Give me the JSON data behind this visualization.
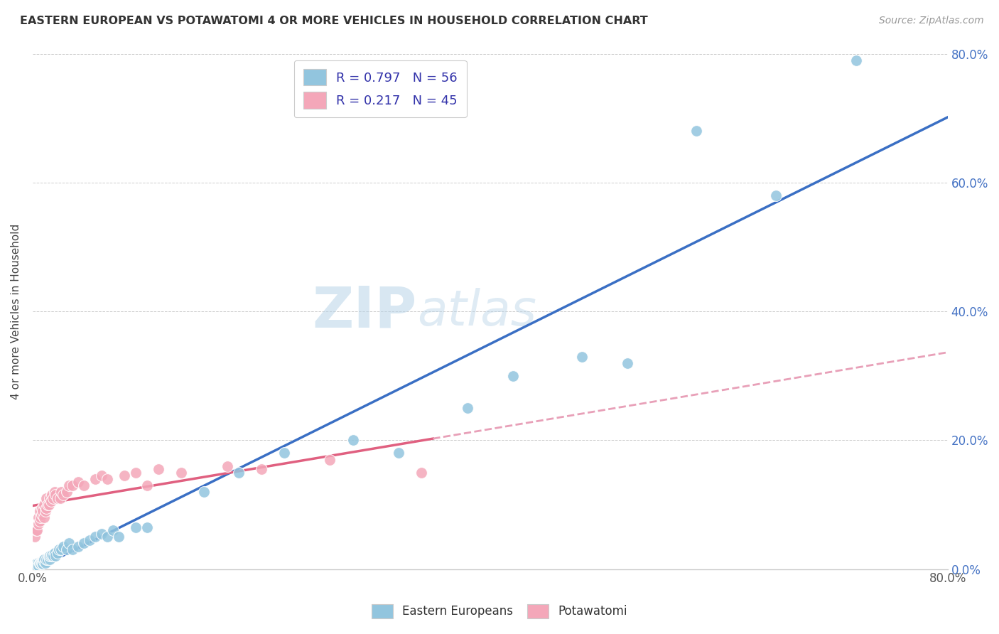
{
  "title": "EASTERN EUROPEAN VS POTAWATOMI 4 OR MORE VEHICLES IN HOUSEHOLD CORRELATION CHART",
  "source": "Source: ZipAtlas.com",
  "ylabel": "4 or more Vehicles in Household",
  "xlim": [
    0.0,
    0.8
  ],
  "ylim": [
    0.0,
    0.8
  ],
  "legend_r1": "R = 0.797   N = 56",
  "legend_r2": "R = 0.217   N = 45",
  "color_eastern": "#92c5de",
  "color_potawatomi": "#f4a7b9",
  "trendline_eastern": "#3a6fc4",
  "trendline_potawatomi": "#e06080",
  "trendline_potawatomi_dashed": "#e8a0b8",
  "watermark_zip": "ZIP",
  "watermark_atlas": "atlas",
  "eastern_x": [
    0.002,
    0.003,
    0.004,
    0.005,
    0.005,
    0.006,
    0.006,
    0.007,
    0.007,
    0.008,
    0.008,
    0.009,
    0.009,
    0.01,
    0.01,
    0.011,
    0.011,
    0.012,
    0.013,
    0.014,
    0.015,
    0.015,
    0.016,
    0.017,
    0.018,
    0.019,
    0.02,
    0.022,
    0.023,
    0.025,
    0.027,
    0.03,
    0.032,
    0.035,
    0.04,
    0.045,
    0.05,
    0.055,
    0.06,
    0.065,
    0.07,
    0.075,
    0.09,
    0.1,
    0.15,
    0.18,
    0.22,
    0.28,
    0.32,
    0.38,
    0.42,
    0.48,
    0.52,
    0.58,
    0.65,
    0.72
  ],
  "eastern_y": [
    0.005,
    0.008,
    0.005,
    0.01,
    0.005,
    0.01,
    0.008,
    0.01,
    0.008,
    0.01,
    0.01,
    0.012,
    0.008,
    0.012,
    0.015,
    0.012,
    0.01,
    0.015,
    0.015,
    0.018,
    0.015,
    0.02,
    0.02,
    0.022,
    0.02,
    0.025,
    0.02,
    0.025,
    0.03,
    0.03,
    0.035,
    0.03,
    0.04,
    0.03,
    0.035,
    0.04,
    0.045,
    0.05,
    0.055,
    0.05,
    0.06,
    0.05,
    0.065,
    0.065,
    0.12,
    0.15,
    0.18,
    0.2,
    0.18,
    0.25,
    0.3,
    0.33,
    0.32,
    0.68,
    0.58,
    0.79
  ],
  "potawatomi_x": [
    0.002,
    0.003,
    0.004,
    0.005,
    0.005,
    0.006,
    0.006,
    0.007,
    0.008,
    0.008,
    0.009,
    0.01,
    0.01,
    0.011,
    0.012,
    0.012,
    0.013,
    0.014,
    0.015,
    0.016,
    0.017,
    0.018,
    0.019,
    0.02,
    0.022,
    0.024,
    0.025,
    0.027,
    0.03,
    0.032,
    0.035,
    0.04,
    0.045,
    0.055,
    0.06,
    0.065,
    0.08,
    0.09,
    0.1,
    0.11,
    0.13,
    0.17,
    0.2,
    0.26,
    0.34
  ],
  "potawatomi_y": [
    0.05,
    0.06,
    0.06,
    0.07,
    0.08,
    0.075,
    0.09,
    0.08,
    0.085,
    0.095,
    0.09,
    0.08,
    0.1,
    0.09,
    0.095,
    0.11,
    0.1,
    0.1,
    0.11,
    0.105,
    0.115,
    0.11,
    0.12,
    0.115,
    0.11,
    0.11,
    0.12,
    0.115,
    0.12,
    0.13,
    0.13,
    0.135,
    0.13,
    0.14,
    0.145,
    0.14,
    0.145,
    0.15,
    0.13,
    0.155,
    0.15,
    0.16,
    0.155,
    0.17,
    0.15
  ]
}
